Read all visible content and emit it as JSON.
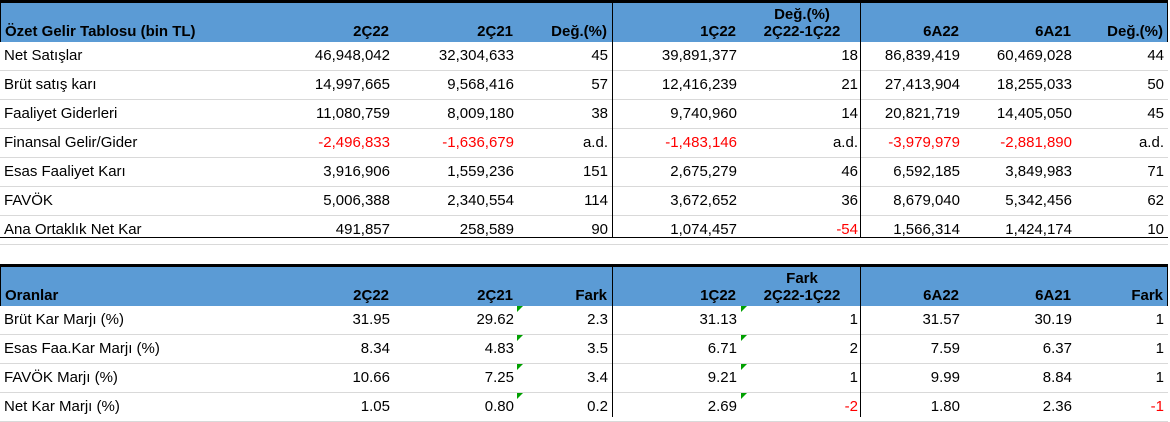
{
  "income": {
    "headers": {
      "title": "Özet Gelir Tablosu (bin TL)",
      "c1": "2Ç22",
      "c2": "2Ç21",
      "c3": "Değ.(%)",
      "c4": "1Ç22",
      "c5a": "Değ.(%)",
      "c5b": "2Ç22-1Ç22",
      "c6": "6A22",
      "c7": "6A21",
      "c8": "Değ.(%)"
    },
    "rows": [
      {
        "label": "Net Satışlar",
        "v": [
          "46,948,042",
          "32,304,633",
          "45",
          "39,891,377",
          "18",
          "86,839,419",
          "60,469,028",
          "44"
        ],
        "neg": [
          false,
          false,
          false,
          false,
          false,
          false,
          false,
          false
        ]
      },
      {
        "label": "Brüt satış karı",
        "v": [
          "14,997,665",
          "9,568,416",
          "57",
          "12,416,239",
          "21",
          "27,413,904",
          "18,255,033",
          "50"
        ],
        "neg": [
          false,
          false,
          false,
          false,
          false,
          false,
          false,
          false
        ]
      },
      {
        "label": "Faaliyet Giderleri",
        "v": [
          "11,080,759",
          "8,009,180",
          "38",
          "9,740,960",
          "14",
          "20,821,719",
          "14,405,050",
          "45"
        ],
        "neg": [
          false,
          false,
          false,
          false,
          false,
          false,
          false,
          false
        ]
      },
      {
        "label": "Finansal Gelir/Gider",
        "v": [
          "-2,496,833",
          "-1,636,679",
          "a.d.",
          "-1,483,146",
          "a.d.",
          "-3,979,979",
          "-2,881,890",
          "a.d."
        ],
        "neg": [
          true,
          true,
          false,
          true,
          false,
          true,
          true,
          false
        ]
      },
      {
        "label": "Esas Faaliyet Karı",
        "v": [
          "3,916,906",
          "1,559,236",
          "151",
          "2,675,279",
          "46",
          "6,592,185",
          "3,849,983",
          "71"
        ],
        "neg": [
          false,
          false,
          false,
          false,
          false,
          false,
          false,
          false
        ]
      },
      {
        "label": "FAVÖK",
        "v": [
          "5,006,388",
          "2,340,554",
          "114",
          "3,672,652",
          "36",
          "8,679,040",
          "5,342,456",
          "62"
        ],
        "neg": [
          false,
          false,
          false,
          false,
          false,
          false,
          false,
          false
        ]
      },
      {
        "label": "Ana Ortaklık Net Kar",
        "v": [
          "491,857",
          "258,589",
          "90",
          "1,074,457",
          "-54",
          "1,566,314",
          "1,424,174",
          "10"
        ],
        "neg": [
          false,
          false,
          false,
          false,
          true,
          false,
          false,
          false
        ]
      }
    ]
  },
  "ratios": {
    "headers": {
      "title": "Oranlar",
      "c1": "2Ç22",
      "c2": "2Ç21",
      "c3": "Fark",
      "c4": "1Ç22",
      "c5a": "Fark",
      "c5b": "2Ç22-1Ç22",
      "c6": "6A22",
      "c7": "6A21",
      "c8": "Fark"
    },
    "rows": [
      {
        "label": "Brüt Kar Marjı (%)",
        "v": [
          "31.95",
          "29.62",
          "2.3",
          "31.13",
          "1",
          "31.57",
          "30.19",
          "1"
        ],
        "neg": [
          false,
          false,
          false,
          false,
          false,
          false,
          false,
          false
        ]
      },
      {
        "label": "Esas Faa.Kar Marjı (%)",
        "v": [
          "8.34",
          "4.83",
          "3.5",
          "6.71",
          "2",
          "7.59",
          "6.37",
          "1"
        ],
        "neg": [
          false,
          false,
          false,
          false,
          false,
          false,
          false,
          false
        ]
      },
      {
        "label": "FAVÖK Marjı (%)",
        "v": [
          "10.66",
          "7.25",
          "3.4",
          "9.21",
          "1",
          "9.99",
          "8.84",
          "1"
        ],
        "neg": [
          false,
          false,
          false,
          false,
          false,
          false,
          false,
          false
        ]
      },
      {
        "label": "Net Kar Marjı (%)",
        "v": [
          "1.05",
          "0.80",
          "0.2",
          "2.69",
          "-2",
          "1.80",
          "2.36",
          "-1"
        ],
        "neg": [
          false,
          false,
          false,
          false,
          true,
          false,
          false,
          true
        ]
      }
    ]
  },
  "colors": {
    "header_bg": "#5b9bd5",
    "negative": "#ff0000",
    "marker": "#00a000"
  }
}
